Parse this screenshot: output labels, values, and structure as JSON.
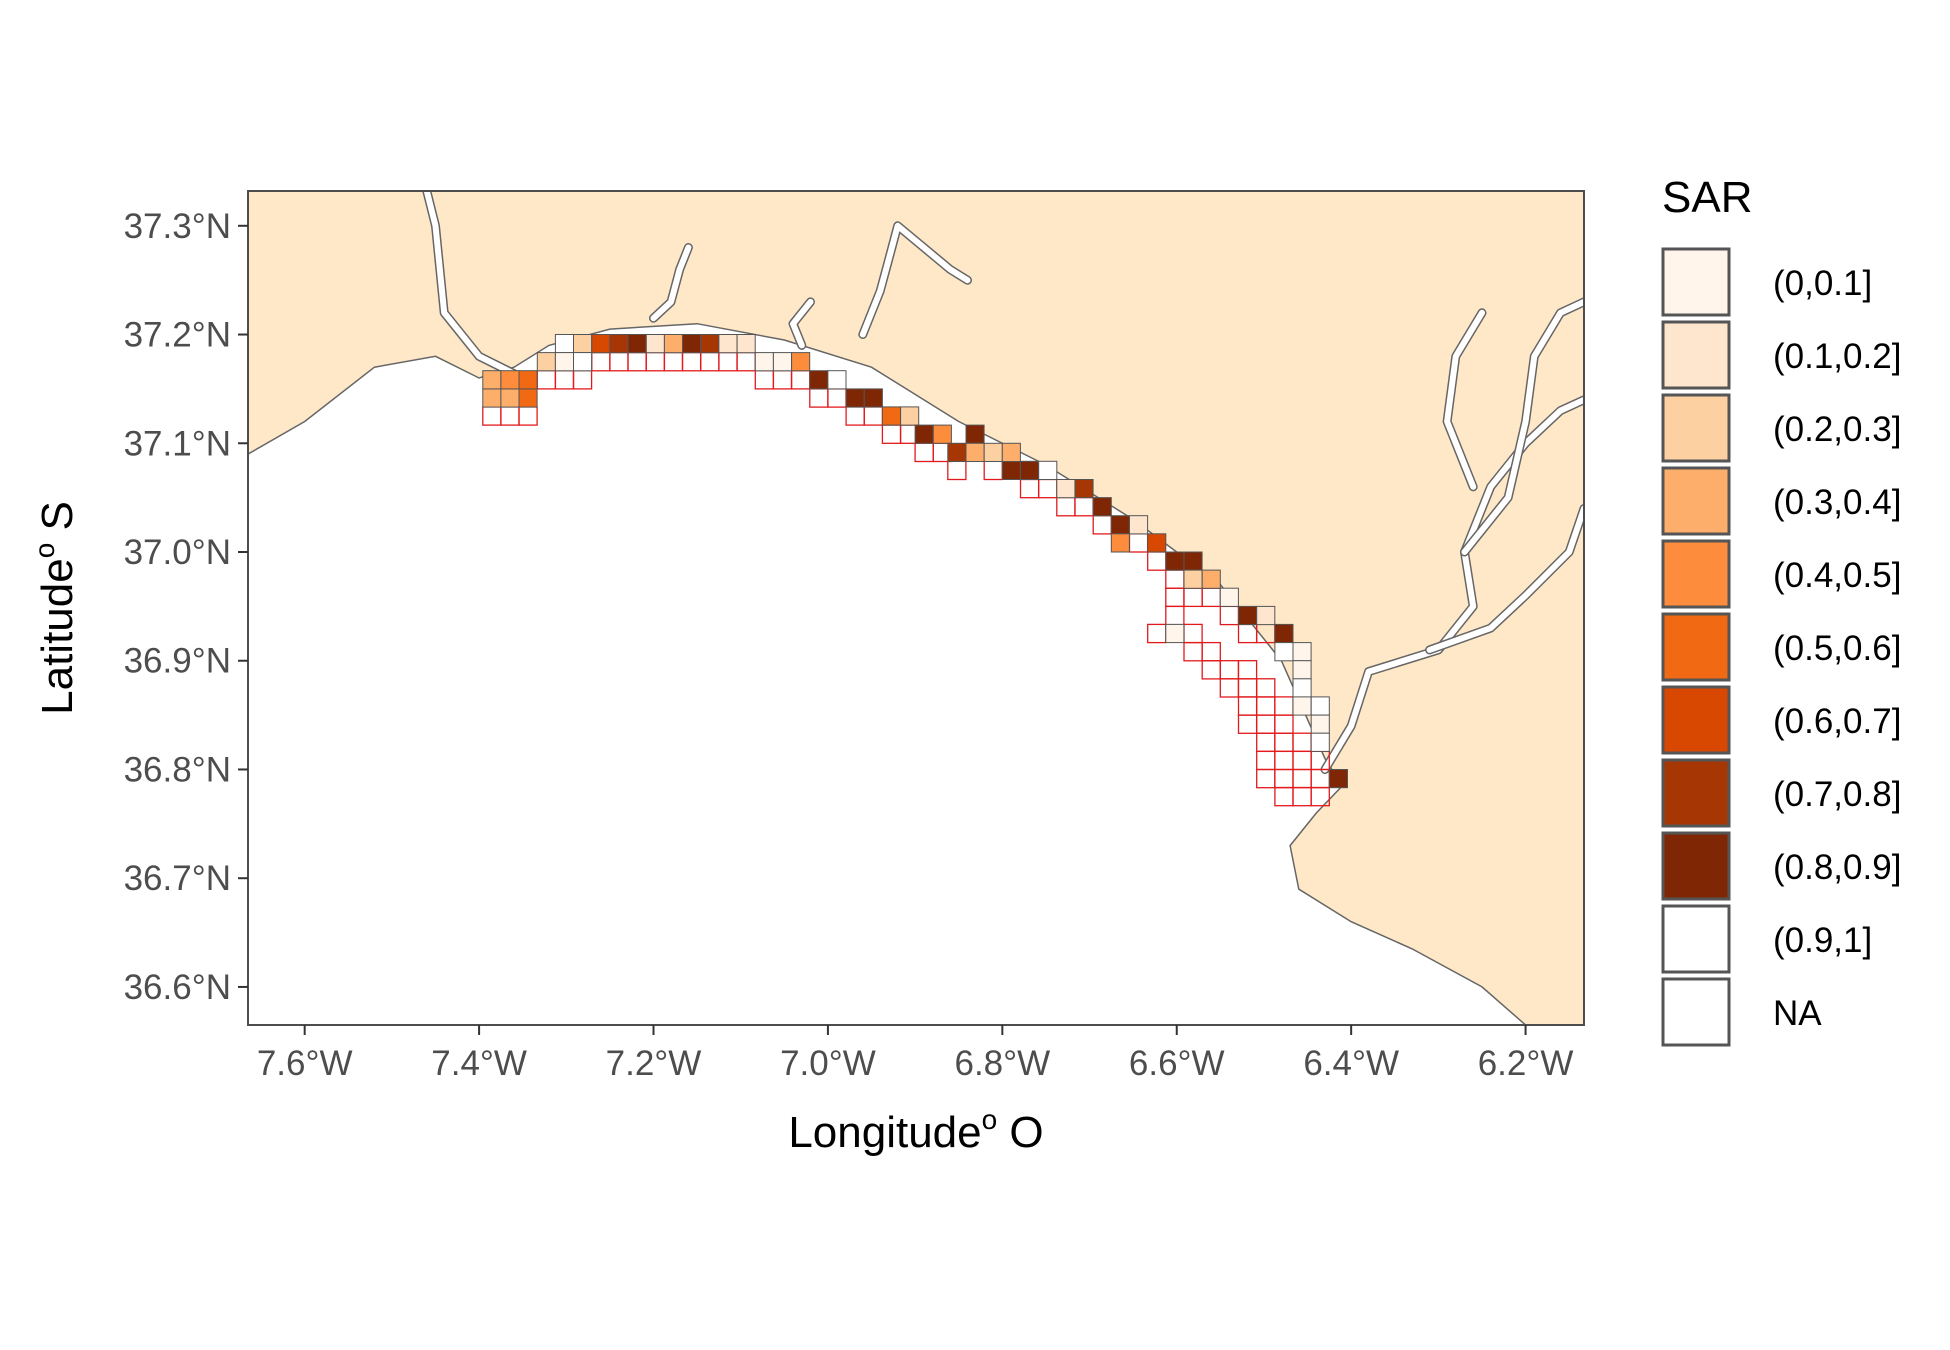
{
  "chart_data": {
    "type": "choropleth-map",
    "xlabel": "Longitude",
    "xlabel_suffix": " O",
    "ylabel": "Latitude",
    "ylabel_suffix": " S",
    "degree_mark": "o",
    "x_range": [
      -7.665,
      -6.133
    ],
    "y_range": [
      36.565,
      37.332
    ],
    "x_ticks": [
      {
        "value": -7.6,
        "label": "7.6°W"
      },
      {
        "value": -7.4,
        "label": "7.4°W"
      },
      {
        "value": -7.2,
        "label": "7.2°W"
      },
      {
        "value": -7.0,
        "label": "7.0°W"
      },
      {
        "value": -6.8,
        "label": "6.8°W"
      },
      {
        "value": -6.6,
        "label": "6.6°W"
      },
      {
        "value": -6.4,
        "label": "6.4°W"
      },
      {
        "value": -6.2,
        "label": "6.2°W"
      }
    ],
    "y_ticks": [
      {
        "value": 37.3,
        "label": "37.3°N"
      },
      {
        "value": 37.2,
        "label": "37.2°N"
      },
      {
        "value": 37.1,
        "label": "37.1°N"
      },
      {
        "value": 37.0,
        "label": "37.0°N"
      },
      {
        "value": 36.9,
        "label": "36.9°N"
      },
      {
        "value": 36.8,
        "label": "36.8°N"
      },
      {
        "value": 36.7,
        "label": "36.7°N"
      },
      {
        "value": 36.6,
        "label": "36.6°N"
      }
    ],
    "colors": {
      "land": "#ffe8c8",
      "sea": "#ffffff",
      "coast": "#666666",
      "panel_border": "#4d4d4d",
      "na_cell_border": "#e31a1c",
      "data_cell_border": "#555555"
    },
    "legend": {
      "title": "SAR",
      "position": "right",
      "items": [
        {
          "label": "(0,0.1]",
          "color": "#fff5eb"
        },
        {
          "label": "(0.1,0.2]",
          "color": "#fee6ce"
        },
        {
          "label": "(0.2,0.3]",
          "color": "#fdd0a2"
        },
        {
          "label": "(0.3,0.4]",
          "color": "#fdae6b"
        },
        {
          "label": "(0.4,0.5]",
          "color": "#fd8d3c"
        },
        {
          "label": "(0.5,0.6]",
          "color": "#f16913"
        },
        {
          "label": "(0.6,0.7]",
          "color": "#d94801"
        },
        {
          "label": "(0.7,0.8]",
          "color": "#a63603"
        },
        {
          "label": "(0.8,0.9]",
          "color": "#7f2704"
        },
        {
          "label": "(0.9,1]",
          "color": "#ffffff"
        },
        {
          "label": "NA",
          "color": "#ffffff"
        }
      ]
    },
    "coastline": [
      [
        -7.665,
        37.09
      ],
      [
        -7.6,
        37.12
      ],
      [
        -7.52,
        37.17
      ],
      [
        -7.45,
        37.18
      ],
      [
        -7.4,
        37.16
      ],
      [
        -7.36,
        37.17
      ],
      [
        -7.32,
        37.19
      ],
      [
        -7.25,
        37.205
      ],
      [
        -7.15,
        37.21
      ],
      [
        -7.05,
        37.195
      ],
      [
        -6.95,
        37.17
      ],
      [
        -6.85,
        37.12
      ],
      [
        -6.75,
        37.08
      ],
      [
        -6.65,
        37.03
      ],
      [
        -6.55,
        36.97
      ],
      [
        -6.48,
        36.9
      ],
      [
        -6.43,
        36.81
      ],
      [
        -6.41,
        36.785
      ],
      [
        -6.44,
        36.76
      ],
      [
        -6.47,
        36.73
      ],
      [
        -6.46,
        36.69
      ],
      [
        -6.4,
        36.66
      ],
      [
        -6.33,
        36.635
      ],
      [
        -6.25,
        36.6
      ],
      [
        -6.2,
        36.565
      ],
      [
        -6.133,
        36.565
      ],
      [
        -6.133,
        37.332
      ],
      [
        -7.665,
        37.332
      ]
    ],
    "cell_size": [
      0.0208,
      0.0167
    ],
    "cell_grid_origin": [
      -7.3958,
      36.7417
    ],
    "cells": [
      [
        -7.3958,
        37.1333,
        3
      ],
      [
        -7.375,
        37.1333,
        3
      ],
      [
        -7.3542,
        37.1333,
        5
      ],
      [
        -7.3958,
        37.1167,
        null
      ],
      [
        -7.375,
        37.1167,
        null
      ],
      [
        -7.3542,
        37.1167,
        null
      ],
      [
        -7.3958,
        37.15,
        3
      ],
      [
        -7.375,
        37.15,
        4
      ],
      [
        -7.3542,
        37.15,
        5
      ],
      [
        -7.3333,
        37.1667,
        2
      ],
      [
        -7.3333,
        37.15,
        null
      ],
      [
        -7.3125,
        37.1833,
        9
      ],
      [
        -7.3125,
        37.1667,
        0
      ],
      [
        -7.3125,
        37.15,
        null
      ],
      [
        -7.2917,
        37.1833,
        2
      ],
      [
        -7.2917,
        37.1667,
        9
      ],
      [
        -7.2917,
        37.15,
        null
      ],
      [
        -7.2708,
        37.1833,
        6
      ],
      [
        -7.2708,
        37.1667,
        null
      ],
      [
        -7.25,
        37.1833,
        7
      ],
      [
        -7.25,
        37.1667,
        null
      ],
      [
        -7.2292,
        37.1833,
        8
      ],
      [
        -7.2292,
        37.1667,
        null
      ],
      [
        -7.2083,
        37.1833,
        1
      ],
      [
        -7.2083,
        37.1667,
        null
      ],
      [
        -7.1875,
        37.1833,
        3
      ],
      [
        -7.1875,
        37.1667,
        null
      ],
      [
        -7.1667,
        37.1833,
        8
      ],
      [
        -7.1667,
        37.1667,
        null
      ],
      [
        -7.1458,
        37.1833,
        7
      ],
      [
        -7.1458,
        37.1667,
        null
      ],
      [
        -7.125,
        37.1833,
        1
      ],
      [
        -7.125,
        37.1667,
        null
      ],
      [
        -7.1042,
        37.1833,
        1
      ],
      [
        -7.1042,
        37.1667,
        null
      ],
      [
        -7.0833,
        37.1667,
        0
      ],
      [
        -7.0833,
        37.15,
        null
      ],
      [
        -7.0625,
        37.1667,
        0
      ],
      [
        -7.0625,
        37.15,
        null
      ],
      [
        -7.0417,
        37.1667,
        4
      ],
      [
        -7.0417,
        37.15,
        null
      ],
      [
        -7.0208,
        37.15,
        8
      ],
      [
        -7.0208,
        37.1333,
        null
      ],
      [
        -7.0,
        37.15,
        9
      ],
      [
        -7.0,
        37.1333,
        null
      ],
      [
        -6.9792,
        37.1333,
        8
      ],
      [
        -6.9792,
        37.1167,
        null
      ],
      [
        -6.9583,
        37.1333,
        8
      ],
      [
        -6.9583,
        37.1167,
        null
      ],
      [
        -6.9375,
        37.1167,
        5
      ],
      [
        -6.9375,
        37.1,
        null
      ],
      [
        -6.9167,
        37.1167,
        2
      ],
      [
        -6.9167,
        37.1,
        null
      ],
      [
        -6.9,
        37.1,
        8
      ],
      [
        -6.9,
        37.0833,
        null
      ],
      [
        -6.8792,
        37.1,
        4
      ],
      [
        -6.8792,
        37.0833,
        null
      ],
      [
        -6.8625,
        37.0833,
        7
      ],
      [
        -6.8625,
        37.0667,
        null
      ],
      [
        -6.8417,
        37.1,
        8
      ],
      [
        -6.8417,
        37.0833,
        3
      ],
      [
        -6.8208,
        37.0833,
        2
      ],
      [
        -6.8208,
        37.0667,
        null
      ],
      [
        -6.8,
        37.0667,
        8
      ],
      [
        -6.8,
        37.0833,
        3
      ],
      [
        -6.7792,
        37.0667,
        8
      ],
      [
        -6.7792,
        37.05,
        null
      ],
      [
        -6.7583,
        37.0667,
        9
      ],
      [
        -6.7583,
        37.05,
        null
      ],
      [
        -6.7375,
        37.05,
        1
      ],
      [
        -6.7375,
        37.0333,
        null
      ],
      [
        -6.7167,
        37.05,
        7
      ],
      [
        -6.7167,
        37.0333,
        null
      ],
      [
        -6.6958,
        37.0333,
        8
      ],
      [
        -6.6958,
        37.0167,
        null
      ],
      [
        -6.675,
        37.0167,
        8
      ],
      [
        -6.675,
        37.0,
        4
      ],
      [
        -6.6542,
        37.0167,
        1
      ],
      [
        -6.6542,
        37.0,
        null
      ],
      [
        -6.6333,
        37.0,
        6
      ],
      [
        -6.6333,
        36.9833,
        null
      ],
      [
        -6.6125,
        36.9833,
        8
      ],
      [
        -6.6125,
        36.9667,
        null
      ],
      [
        -6.5917,
        36.9833,
        8
      ],
      [
        -6.5917,
        36.9667,
        2
      ],
      [
        -6.5708,
        36.9667,
        3
      ],
      [
        -6.5708,
        36.95,
        null
      ],
      [
        -6.55,
        36.95,
        0
      ],
      [
        -6.55,
        36.9333,
        null
      ],
      [
        -6.5292,
        36.9333,
        8
      ],
      [
        -6.5292,
        36.9167,
        null
      ],
      [
        -6.5083,
        36.9333,
        1
      ],
      [
        -6.5083,
        36.9167,
        null
      ],
      [
        -6.4875,
        36.9167,
        8
      ],
      [
        -6.4875,
        36.9,
        9
      ],
      [
        -6.4667,
        36.9,
        0
      ],
      [
        -6.4667,
        36.8833,
        0
      ],
      [
        -6.4667,
        36.8667,
        9
      ],
      [
        -6.4667,
        36.85,
        0
      ],
      [
        -6.4458,
        36.85,
        9
      ],
      [
        -6.4458,
        36.8333,
        0
      ],
      [
        -6.4458,
        36.8167,
        9
      ],
      [
        -6.425,
        36.7833,
        8
      ],
      [
        -6.4458,
        36.8,
        null
      ],
      [
        -6.4458,
        36.7833,
        null
      ],
      [
        -6.5917,
        36.95,
        null
      ],
      [
        -6.6125,
        36.95,
        null
      ],
      [
        -6.6125,
        36.9333,
        null
      ],
      [
        -6.6333,
        36.9167,
        null
      ],
      [
        -6.6125,
        36.9167,
        0
      ],
      [
        -6.5917,
        36.9167,
        null
      ],
      [
        -6.5917,
        36.9,
        null
      ],
      [
        -6.5708,
        36.9,
        null
      ],
      [
        -6.5708,
        36.8833,
        null
      ],
      [
        -6.55,
        36.8833,
        null
      ],
      [
        -6.55,
        36.8667,
        null
      ],
      [
        -6.5292,
        36.8667,
        null
      ],
      [
        -6.5292,
        36.85,
        null
      ],
      [
        -6.5083,
        36.85,
        null
      ],
      [
        -6.5083,
        36.8333,
        null
      ],
      [
        -6.4875,
        36.8333,
        null
      ],
      [
        -6.4875,
        36.8167,
        null
      ],
      [
        -6.4667,
        36.8167,
        null
      ],
      [
        -6.4667,
        36.8,
        null
      ],
      [
        -6.4875,
        36.8,
        null
      ],
      [
        -6.5083,
        36.8167,
        null
      ],
      [
        -6.5292,
        36.8333,
        null
      ],
      [
        -6.4875,
        36.7833,
        null
      ],
      [
        -6.4667,
        36.7833,
        null
      ],
      [
        -6.4875,
        36.7667,
        null
      ],
      [
        -6.4667,
        36.7667,
        null
      ],
      [
        -6.5083,
        36.8,
        null
      ],
      [
        -6.5083,
        36.7833,
        null
      ],
      [
        -6.4875,
        36.85,
        null
      ],
      [
        -6.5083,
        36.8667,
        null
      ],
      [
        -6.5292,
        36.8833,
        null
      ],
      [
        -6.4458,
        36.7667,
        null
      ]
    ],
    "rivers": [
      [
        [
          -7.35,
          37.16
        ],
        [
          -7.4,
          37.18
        ],
        [
          -7.44,
          37.22
        ],
        [
          -7.45,
          37.3
        ],
        [
          -7.46,
          37.332
        ]
      ],
      [
        [
          -7.2,
          37.215
        ],
        [
          -7.18,
          37.23
        ],
        [
          -7.17,
          37.26
        ],
        [
          -7.16,
          37.28
        ]
      ],
      [
        [
          -6.96,
          37.2
        ],
        [
          -6.94,
          37.24
        ],
        [
          -6.93,
          37.27
        ],
        [
          -6.92,
          37.3
        ],
        [
          -6.86,
          37.26
        ],
        [
          -6.84,
          37.25
        ]
      ],
      [
        [
          -7.02,
          37.23
        ],
        [
          -7.04,
          37.21
        ],
        [
          -7.03,
          37.19
        ]
      ],
      [
        [
          -6.43,
          36.8
        ],
        [
          -6.4,
          36.84
        ],
        [
          -6.38,
          36.89
        ],
        [
          -6.3,
          36.91
        ],
        [
          -6.26,
          36.95
        ],
        [
          -6.27,
          37.0
        ],
        [
          -6.24,
          37.06
        ],
        [
          -6.2,
          37.1
        ],
        [
          -6.16,
          37.13
        ],
        [
          -6.133,
          37.14
        ]
      ],
      [
        [
          -6.31,
          36.91
        ],
        [
          -6.24,
          36.93
        ],
        [
          -6.2,
          36.96
        ],
        [
          -6.15,
          37.0
        ],
        [
          -6.133,
          37.04
        ]
      ],
      [
        [
          -6.27,
          37.0
        ],
        [
          -6.22,
          37.05
        ],
        [
          -6.2,
          37.12
        ],
        [
          -6.19,
          37.18
        ],
        [
          -6.16,
          37.22
        ],
        [
          -6.133,
          37.23
        ]
      ],
      [
        [
          -6.26,
          37.06
        ],
        [
          -6.29,
          37.12
        ],
        [
          -6.28,
          37.18
        ],
        [
          -6.25,
          37.22
        ]
      ]
    ]
  }
}
